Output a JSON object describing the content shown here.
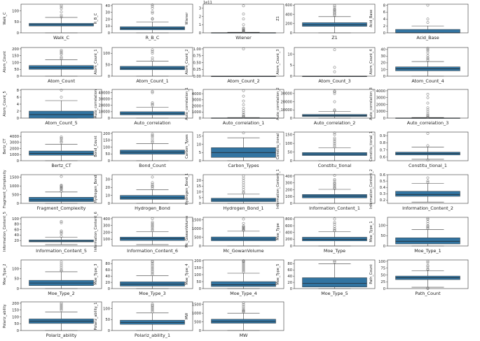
{
  "figure": {
    "title": "",
    "layout": "8 rows x 5 columns of box plots"
  },
  "colors": {
    "box": "#3274a1",
    "median": "#1f1f1f",
    "outlier": "#666666",
    "axis": "#333333"
  },
  "chart_data": [
    {
      "type": "box",
      "name": "Walk_C",
      "ylabel": "Walk_C",
      "xlabel": "Walk_C",
      "yticks": [
        "0",
        "50",
        "100"
      ],
      "ylim": [
        0,
        130
      ],
      "stats": {
        "lo": 0,
        "q1": 31,
        "med": 37,
        "q3": 43,
        "hi": 70
      },
      "outliers": [
        72,
        80,
        95,
        110,
        118,
        125
      ]
    },
    {
      "type": "box",
      "name": "R_B_C",
      "ylabel": "R_B_C",
      "xlabel": "R_B_C",
      "yticks": [
        "0",
        "10",
        "20",
        "30",
        "40"
      ],
      "ylim": [
        0,
        42
      ],
      "stats": {
        "lo": 0,
        "q1": 4.5,
        "med": 6.5,
        "q3": 9,
        "hi": 16
      },
      "outliers": [
        20,
        21,
        29,
        31,
        36,
        39,
        41
      ]
    },
    {
      "type": "box",
      "name": "Wiener",
      "ylabel": "Wiener",
      "xlabel": "Wiener",
      "yticks": [
        "0",
        "1",
        "2",
        "3"
      ],
      "ylim": [
        0,
        3.5
      ],
      "offset": "1e11",
      "stats": {
        "lo": 0,
        "q1": 0.0,
        "med": 0.01,
        "q3": 0.03,
        "hi": 0.07
      },
      "outliers": [
        0.1,
        0.15,
        0.2,
        0.25,
        0.3,
        0.4,
        0.5,
        0.6,
        1.0,
        1.7,
        2.3,
        3.3
      ]
    },
    {
      "type": "box",
      "name": "Z1",
      "ylabel": "Z1",
      "xlabel": "Z1",
      "yticks": [
        "0",
        "200",
        "400",
        "600"
      ],
      "ylim": [
        0,
        620
      ],
      "stats": {
        "lo": 0,
        "q1": 140,
        "med": 175,
        "q3": 220,
        "hi": 350
      },
      "outliers": [
        380,
        400,
        430,
        450,
        480,
        500,
        520,
        560,
        590
      ]
    },
    {
      "type": "box",
      "name": "Acid_Base",
      "ylabel": "Acid_Base",
      "xlabel": "Acid_Base",
      "yticks": [
        "0",
        "2",
        "4",
        "6",
        "8"
      ],
      "ylim": [
        0,
        8.3
      ],
      "stats": {
        "lo": 0,
        "q1": 0,
        "med": 0,
        "q3": 1,
        "hi": 2
      },
      "outliers": [
        3,
        4,
        8
      ]
    },
    {
      "type": "box",
      "name": "Atom_Count",
      "ylabel": "Atom_Count",
      "xlabel": "Atom_Count",
      "yticks": [
        "0",
        "50",
        "100",
        "150",
        "200"
      ],
      "ylim": [
        0,
        210
      ],
      "stats": {
        "lo": 0,
        "q1": 50,
        "med": 62,
        "q3": 78,
        "hi": 120
      },
      "outliers": [
        130,
        140,
        160,
        170,
        180,
        190
      ]
    },
    {
      "type": "box",
      "name": "Atom_Count_1",
      "ylabel": "Atom_Count_1",
      "xlabel": "Atom_Count_1",
      "yticks": [
        "0",
        "50",
        "100"
      ],
      "ylim": [
        0,
        125
      ],
      "stats": {
        "lo": 0,
        "q1": 28,
        "med": 35,
        "q3": 43,
        "hi": 65
      },
      "outliers": [
        70,
        80,
        100,
        108,
        115
      ]
    },
    {
      "type": "box",
      "name": "Atom_Count_2",
      "ylabel": "Atom_Count_2",
      "xlabel": "Atom_Count_2",
      "yticks": [
        "0.00",
        "0.25",
        "0.50",
        "0.75",
        "1.00"
      ],
      "ylim": [
        0,
        1.05
      ],
      "stats": {
        "lo": 0,
        "q1": 0,
        "med": 0,
        "q3": 0,
        "hi": 0
      },
      "outliers": [
        1.0
      ]
    },
    {
      "type": "box",
      "name": "Atom_Count_3",
      "ylabel": "Atom_Count_3",
      "xlabel": "Atom_Count_3",
      "yticks": [
        "0",
        "5",
        "10"
      ],
      "ylim": [
        0,
        13
      ],
      "stats": {
        "lo": 0,
        "q1": 0,
        "med": 0,
        "q3": 0,
        "hi": 0
      },
      "outliers": [
        2,
        4,
        12
      ]
    },
    {
      "type": "box",
      "name": "Atom_Count_4",
      "ylabel": "Atom_Count_4",
      "xlabel": "Atom_Count_4",
      "yticks": [
        "0",
        "10",
        "20",
        "30",
        "40"
      ],
      "ylim": [
        0,
        43
      ],
      "stats": {
        "lo": 0,
        "q1": 8,
        "med": 11,
        "q3": 14,
        "hi": 22
      },
      "outliers": [
        24,
        26,
        28,
        31,
        35,
        38,
        40,
        42
      ]
    },
    {
      "type": "box",
      "name": "Atom_Count_5",
      "ylabel": "Atom_Count_5",
      "xlabel": "Atom_Count_5",
      "yticks": [
        "0",
        "2",
        "4",
        "6",
        "8"
      ],
      "ylim": [
        0,
        8.2
      ],
      "stats": {
        "lo": 0,
        "q1": 0,
        "med": 1,
        "q3": 2,
        "hi": 5
      },
      "outliers": [
        6,
        8
      ]
    },
    {
      "type": "box",
      "name": "Auto_correlation",
      "ylabel": "Auto_correlation",
      "xlabel": "Auto_correlation",
      "yticks": [
        "0",
        "10000",
        "20000",
        "30000",
        "40000"
      ],
      "ylim": [
        0,
        45000
      ],
      "stats": {
        "lo": 0,
        "q1": 5000,
        "med": 7500,
        "q3": 10000,
        "hi": 17000
      },
      "outliers": [
        20000,
        22000,
        24000,
        40000,
        42000
      ]
    },
    {
      "type": "box",
      "name": "Auto_correlation_1",
      "ylabel": "Auto_correlation_1",
      "xlabel": "Auto_correlation_1",
      "yticks": [
        "0",
        "1000",
        "2000",
        "3000",
        "4000"
      ],
      "ylim": [
        0,
        4700
      ],
      "stats": {
        "lo": 0,
        "q1": 0,
        "med": 0,
        "q3": 40,
        "hi": 100
      },
      "outliers": [
        150,
        250,
        400,
        600,
        900,
        1200,
        1600,
        2200,
        2800,
        3600,
        4500
      ]
    },
    {
      "type": "box",
      "name": "Auto_correlation_2",
      "ylabel": "Auto_correlation_2",
      "xlabel": "Auto_correlation_2",
      "yticks": [
        "0",
        "10000",
        "20000",
        "30000"
      ],
      "ylim": [
        0,
        35000
      ],
      "stats": {
        "lo": 0,
        "q1": 2000,
        "med": 3000,
        "q3": 4500,
        "hi": 8000
      },
      "outliers": [
        9000,
        10000,
        20000,
        30000,
        32000,
        33000
      ]
    },
    {
      "type": "box",
      "name": "Auto_correlation_3",
      "ylabel": "Auto_correlation_3",
      "xlabel": "Auto_correlation_3",
      "yticks": [
        "0",
        "1000",
        "2000",
        "3000",
        "4000"
      ],
      "ylim": [
        0,
        4200
      ],
      "stats": {
        "lo": 0,
        "q1": 0,
        "med": 0,
        "q3": 30,
        "hi": 80
      },
      "outliers": [
        120,
        250,
        400,
        600,
        900,
        1200,
        1500,
        2200,
        3000,
        3500
      ]
    },
    {
      "type": "box",
      "name": "Bertz_CT",
      "ylabel": "Bertz_CT",
      "xlabel": "Bertz_CT",
      "yticks": [
        "0",
        "1000",
        "2000",
        "3000",
        "4000"
      ],
      "ylim": [
        0,
        4700
      ],
      "stats": {
        "lo": 0,
        "q1": 900,
        "med": 1200,
        "q3": 1600,
        "hi": 2700
      },
      "outliers": [
        3000,
        3200,
        3500,
        3700,
        3900
      ]
    },
    {
      "type": "box",
      "name": "Bond_Count",
      "ylabel": "Bond_Count",
      "xlabel": "Bond_Count",
      "yticks": [
        "0",
        "50",
        "100",
        "150",
        "200"
      ],
      "ylim": [
        0,
        210
      ],
      "stats": {
        "lo": 0,
        "q1": 48,
        "med": 62,
        "q3": 78,
        "hi": 125
      },
      "outliers": [
        135,
        145,
        160,
        175,
        185,
        195
      ]
    },
    {
      "type": "box",
      "name": "Carbon_Types",
      "ylabel": "Carbon_Types",
      "xlabel": "Carbon_Types",
      "yticks": [
        "0",
        "5",
        "10",
        "15"
      ],
      "ylim": [
        0,
        17.5
      ],
      "stats": {
        "lo": 0,
        "q1": 2,
        "med": 5,
        "q3": 8,
        "hi": 14
      },
      "outliers": [
        17
      ]
    },
    {
      "type": "box",
      "name": "Constitu_tional",
      "ylabel": "Constitu_tional",
      "xlabel": "Constitu_tional",
      "yticks": [
        "0",
        "50",
        "100",
        "150"
      ],
      "ylim": [
        0,
        165
      ],
      "stats": {
        "lo": 0,
        "q1": 30,
        "med": 38,
        "q3": 47,
        "hi": 75
      },
      "outliers": [
        80,
        90,
        100,
        110,
        120,
        130,
        150,
        160
      ]
    },
    {
      "type": "box",
      "name": "Constitu_tional_1",
      "ylabel": "Constitu_tional_1",
      "xlabel": "Constitu_tional_1",
      "yticks": [
        "0.6",
        "0.7",
        "0.8",
        "0.9"
      ],
      "ylim": [
        0.55,
        0.95
      ],
      "stats": {
        "lo": 0.57,
        "q1": 0.63,
        "med": 0.65,
        "q3": 0.67,
        "hi": 0.74
      },
      "outliers": [
        0.56,
        0.76,
        0.93
      ]
    },
    {
      "type": "box",
      "name": "Fragment_Complexity",
      "ylabel": "Fragment_Complexity",
      "xlabel": "Fragment_Complexity",
      "yticks": [
        "0",
        "500",
        "1000",
        "1500"
      ],
      "ylim": [
        0,
        1650
      ],
      "stats": {
        "lo": 0,
        "q1": 100,
        "med": 200,
        "q3": 350,
        "hi": 650
      },
      "outliers": [
        700,
        800,
        850,
        900,
        950,
        1000,
        1050,
        1550
      ]
    },
    {
      "type": "box",
      "name": "Hydrogen_Bond",
      "ylabel": "Hydrogen_Bond",
      "xlabel": "Hydrogen_Bond",
      "yticks": [
        "0",
        "10",
        "20",
        "30"
      ],
      "ylim": [
        0,
        36
      ],
      "stats": {
        "lo": 0,
        "q1": 5,
        "med": 7,
        "q3": 10,
        "hi": 17
      },
      "outliers": [
        19,
        21,
        22,
        24,
        26,
        33
      ]
    },
    {
      "type": "box",
      "name": "Hydrogen_Bond_1",
      "ylabel": "Hydrogen_Bond_1",
      "xlabel": "Hydrogen_Bond_1",
      "yticks": [
        "0",
        "5",
        "10",
        "15",
        "20"
      ],
      "ylim": [
        0,
        25
      ],
      "stats": {
        "lo": 0,
        "q1": 1.5,
        "med": 3,
        "q3": 4.5,
        "hi": 8
      },
      "outliers": [
        9,
        10,
        12,
        14,
        16,
        18,
        20,
        22,
        24
      ]
    },
    {
      "type": "box",
      "name": "Information_Content_1",
      "ylabel": "Information_Content_1",
      "xlabel": "Information_Content_1",
      "yticks": [
        "0",
        "100",
        "200",
        "300",
        "400"
      ],
      "ylim": [
        0,
        420
      ],
      "stats": {
        "lo": 0,
        "q1": 80,
        "med": 105,
        "q3": 130,
        "hi": 205
      },
      "outliers": [
        215,
        230,
        250,
        270,
        290,
        300,
        330,
        350,
        410
      ]
    },
    {
      "type": "box",
      "name": "Information_Content_2",
      "ylabel": "Information_Content_2",
      "xlabel": "Information_Content_2",
      "yticks": [
        "0.2",
        "0.3",
        "0.4",
        "0.5",
        "0.6"
      ],
      "ylim": [
        0.15,
        0.6
      ],
      "stats": {
        "lo": 0.17,
        "q1": 0.26,
        "med": 0.29,
        "q3": 0.34,
        "hi": 0.46
      },
      "outliers": [
        0.48,
        0.5,
        0.55
      ]
    },
    {
      "type": "box",
      "name": "Information_Content_5",
      "ylabel": "Information_Content_5",
      "xlabel": "Information_Content_5",
      "yticks": [
        "20",
        "40",
        "60",
        "80",
        "100"
      ],
      "ylim": [
        0,
        105
      ],
      "stats": {
        "lo": 5,
        "q1": 15,
        "med": 18,
        "q3": 22,
        "hi": 32
      },
      "outliers": [
        35,
        45,
        50,
        55,
        85,
        90
      ]
    },
    {
      "type": "box",
      "name": "Information_Content_6",
      "ylabel": "Information_Content_6",
      "xlabel": "Information_Content_6",
      "yticks": [
        "100",
        "200",
        "300",
        "400"
      ],
      "ylim": [
        0,
        420
      ],
      "stats": {
        "lo": 20,
        "q1": 80,
        "med": 105,
        "q3": 130,
        "hi": 210
      },
      "outliers": [
        225,
        245,
        270,
        290,
        310,
        330,
        350,
        400
      ]
    },
    {
      "type": "box",
      "name": "Mc_GowanVolume",
      "ylabel": "Mc_GowanVolume",
      "xlabel": "Mc_GowanVolume",
      "yticks": [
        "0",
        "500",
        "1000",
        "1500"
      ],
      "ylim": [
        0,
        1650
      ],
      "stats": {
        "lo": 0,
        "q1": 300,
        "med": 400,
        "q3": 520,
        "hi": 850
      },
      "outliers": [
        900,
        950,
        1000,
        1050,
        1100,
        1150,
        1300,
        1550
      ]
    },
    {
      "type": "box",
      "name": "Moe_Type",
      "ylabel": "Moe_Type",
      "xlabel": "Moe_Type",
      "yticks": [
        "0",
        "200",
        "400",
        "600",
        "800"
      ],
      "ylim": [
        0,
        850
      ],
      "stats": {
        "lo": 0,
        "q1": 150,
        "med": 200,
        "q3": 260,
        "hi": 420
      },
      "outliers": [
        450,
        480,
        520,
        580,
        650,
        700,
        800
      ]
    },
    {
      "type": "box",
      "name": "Moe_Type_1",
      "ylabel": "Moe_Type_1",
      "xlabel": "Moe_Type_1",
      "yticks": [
        "0",
        "50",
        "100"
      ],
      "ylim": [
        0,
        140
      ],
      "stats": {
        "lo": 0,
        "q1": 10,
        "med": 23,
        "q3": 40,
        "hi": 80
      },
      "outliers": [
        85,
        90,
        95,
        100,
        110,
        120,
        130,
        135
      ]
    },
    {
      "type": "box",
      "name": "Moe_Type_2",
      "ylabel": "Moe_Type_2",
      "xlabel": "Moe_Type_2",
      "yticks": [
        "0",
        "50",
        "100"
      ],
      "ylim": [
        0,
        145
      ],
      "stats": {
        "lo": 0,
        "q1": 15,
        "med": 28,
        "q3": 42,
        "hi": 85
      },
      "outliers": [
        90,
        95,
        105,
        115,
        125,
        135
      ]
    },
    {
      "type": "box",
      "name": "Moe_Type_3",
      "ylabel": "Moe_Type_3",
      "xlabel": "Moe_Type_3",
      "yticks": [
        "0",
        "20",
        "40",
        "60",
        "80"
      ],
      "ylim": [
        0,
        92
      ],
      "stats": {
        "lo": 0,
        "q1": 8,
        "med": 14,
        "q3": 22,
        "hi": 42
      },
      "outliers": [
        45,
        50,
        55,
        60,
        65,
        70,
        75,
        80,
        85,
        88
      ]
    },
    {
      "type": "box",
      "name": "Moe_Type_4",
      "ylabel": "Moe_Type_4",
      "xlabel": "Moe_Type_4",
      "yticks": [
        "0",
        "50",
        "100",
        "150",
        "200"
      ],
      "ylim": [
        0,
        205
      ],
      "stats": {
        "lo": 0,
        "q1": 15,
        "med": 28,
        "q3": 50,
        "hi": 110
      },
      "outliers": [
        120,
        130,
        140,
        150,
        160,
        170,
        180,
        190,
        195,
        200
      ]
    },
    {
      "type": "box",
      "name": "Moe_Type_5",
      "ylabel": "Moe_Type_5",
      "xlabel": "Moe_Type_5",
      "yticks": [
        "0",
        "20",
        "40",
        "60",
        "80"
      ],
      "ylim": [
        0,
        92
      ],
      "stats": {
        "lo": 0,
        "q1": 5,
        "med": 17,
        "q3": 35,
        "hi": 80
      },
      "outliers": [
        85,
        89
      ]
    },
    {
      "type": "box",
      "name": "Path_Count",
      "ylabel": "Path_Count",
      "xlabel": "Path_Count",
      "yticks": [
        "0",
        "25",
        "50",
        "75",
        "100"
      ],
      "ylim": [
        0,
        105
      ],
      "stats": {
        "lo": 5,
        "q1": 33,
        "med": 40,
        "q3": 46,
        "hi": 65
      },
      "outliers": [
        0,
        2,
        70,
        72,
        80,
        85,
        95,
        100
      ]
    },
    {
      "type": "box",
      "name": "Polariz_ability",
      "ylabel": "Polariz_ability",
      "xlabel": "Polariz_ability",
      "yticks": [
        "0",
        "50",
        "100",
        "150",
        "200"
      ],
      "ylim": [
        0,
        210
      ],
      "stats": {
        "lo": 0,
        "q1": 52,
        "med": 68,
        "q3": 85,
        "hi": 135
      },
      "outliers": [
        150,
        160,
        170,
        180,
        190,
        200
      ]
    },
    {
      "type": "box",
      "name": "Polariz_ability_1",
      "ylabel": "Polariz_ability_1",
      "xlabel": "Polariz_ability_1",
      "yticks": [
        "0",
        "50",
        "100"
      ],
      "ylim": [
        0,
        130
      ],
      "stats": {
        "lo": 0,
        "q1": 28,
        "med": 37,
        "q3": 47,
        "hi": 80
      },
      "outliers": [
        85,
        92,
        98,
        104,
        110,
        115,
        120
      ]
    },
    {
      "type": "box",
      "name": "MW",
      "ylabel": "MW",
      "xlabel": "MW",
      "yticks": [
        "0",
        "500",
        "1000",
        "1500"
      ],
      "ylim": [
        0,
        1650
      ],
      "stats": {
        "lo": 0,
        "q1": 420,
        "med": 520,
        "q3": 650,
        "hi": 1000
      },
      "outliers": [
        1050,
        1100,
        1150,
        1200,
        1300,
        1400,
        1500,
        1600
      ]
    }
  ]
}
